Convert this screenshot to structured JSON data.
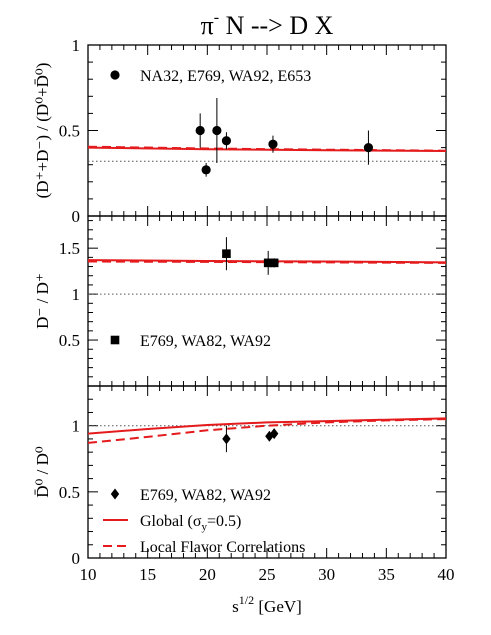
{
  "chart_data": {
    "type": "scatter",
    "title": "π⁻ N  -->  D X",
    "title_parts": {
      "pi": "π",
      "minus": "-",
      "rest": " N  -->  D X"
    },
    "xlabel": {
      "base": "s",
      "sup": "1/2",
      "rest": " [GeV]"
    },
    "x_ticks": [
      "10",
      "15",
      "20",
      "25",
      "30",
      "35",
      "40"
    ],
    "xlim": [
      10,
      40
    ],
    "grid": false,
    "colors": {
      "model": "#e41a1c",
      "reference": "#555555",
      "markers": "#000000"
    },
    "panels": [
      {
        "id": "top",
        "ylabel": "(D⁺+D⁻) / (D⁰+D̄⁰)",
        "ylim": [
          0,
          1
        ],
        "y_ticks": [
          {
            "value": 0,
            "label": "0"
          },
          {
            "value": 0.5,
            "label": "0.5"
          },
          {
            "value": 1,
            "label": "1"
          }
        ],
        "reference_line": 0.32,
        "legend": [
          {
            "marker": "circle",
            "label": "NA32, E769, WA92, E653",
            "placement": "top-left"
          }
        ],
        "series": [
          {
            "kind": "data",
            "marker": "circle",
            "points": [
              {
                "x": 19.4,
                "y": 0.5,
                "err": 0.1
              },
              {
                "x": 19.9,
                "y": 0.27,
                "err": 0.04
              },
              {
                "x": 20.8,
                "y": 0.5,
                "err": 0.19
              },
              {
                "x": 21.6,
                "y": 0.44,
                "err": 0.05
              },
              {
                "x": 25.5,
                "y": 0.42,
                "err": 0.05
              },
              {
                "x": 33.5,
                "y": 0.4,
                "err": 0.1
              }
            ]
          },
          {
            "kind": "model",
            "style": "solid",
            "x": [
              10,
              20,
              30,
              40
            ],
            "y": [
              0.4,
              0.39,
              0.385,
              0.38
            ]
          },
          {
            "kind": "model",
            "style": "dashed",
            "x": [
              10,
              20,
              30,
              40
            ],
            "y": [
              0.405,
              0.395,
              0.388,
              0.382
            ]
          }
        ]
      },
      {
        "id": "middle",
        "ylabel": "D⁻ / D⁺",
        "ylim": [
          0,
          1.85
        ],
        "y_ticks": [
          {
            "value": 0.5,
            "label": "0.5"
          },
          {
            "value": 1,
            "label": "1"
          },
          {
            "value": 1.5,
            "label": "1.5"
          }
        ],
        "reference_line": 1.0,
        "legend": [
          {
            "marker": "square",
            "label": "E769, WA82, WA92",
            "placement": "lower-left"
          }
        ],
        "series": [
          {
            "kind": "data",
            "marker": "square",
            "points": [
              {
                "x": 21.6,
                "y": 1.44,
                "err": 0.18
              },
              {
                "x": 25.1,
                "y": 1.34,
                "err": 0.13
              },
              {
                "x": 25.6,
                "y": 1.34,
                "err": 0.05
              }
            ]
          },
          {
            "kind": "model",
            "style": "solid",
            "x": [
              10,
              20,
              30,
              40
            ],
            "y": [
              1.37,
              1.36,
              1.355,
              1.345
            ]
          },
          {
            "kind": "model",
            "style": "dashed",
            "x": [
              10,
              20,
              30,
              40
            ],
            "y": [
              1.355,
              1.35,
              1.345,
              1.34
            ]
          }
        ]
      },
      {
        "id": "bottom",
        "ylabel": "D̄⁰ / D⁰",
        "ylim": [
          0,
          1.3
        ],
        "y_ticks": [
          {
            "value": 0,
            "label": "0"
          },
          {
            "value": 0.5,
            "label": "0.5"
          },
          {
            "value": 1,
            "label": "1"
          }
        ],
        "reference_line": 1.0,
        "legend": [
          {
            "marker": "diamond",
            "label": "E769, WA82, WA92",
            "placement": "lower-left"
          },
          {
            "marker": "line-solid",
            "label_parts": [
              "Global (σ",
              "y",
              "=0.5)"
            ],
            "placement": "lower-left"
          },
          {
            "marker": "line-dashed",
            "label": "Local Flavor Correlations",
            "placement": "lower-left"
          }
        ],
        "series": [
          {
            "kind": "data",
            "marker": "diamond",
            "points": [
              {
                "x": 21.6,
                "y": 0.9,
                "err": 0.1
              },
              {
                "x": 25.2,
                "y": 0.92,
                "err": 0.03
              },
              {
                "x": 25.6,
                "y": 0.94,
                "err": 0.03
              }
            ]
          },
          {
            "kind": "model",
            "style": "solid",
            "x": [
              10,
              15,
              20,
              25,
              30,
              35,
              40
            ],
            "y": [
              0.94,
              0.975,
              1.005,
              1.025,
              1.035,
              1.045,
              1.055
            ]
          },
          {
            "kind": "model",
            "style": "dashed",
            "x": [
              10,
              15,
              20,
              25,
              30,
              35,
              40
            ],
            "y": [
              0.87,
              0.915,
              0.965,
              1.0,
              1.025,
              1.04,
              1.05
            ]
          }
        ]
      }
    ]
  }
}
